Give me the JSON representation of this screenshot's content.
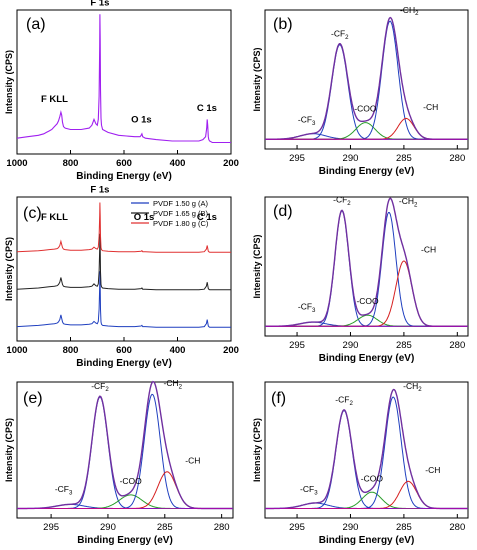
{
  "chart_data": [
    {
      "panel": "(a)",
      "type": "line",
      "xlabel": "Binding Energy (eV)",
      "ylabel": "Intensity (CPS)",
      "xlim": [
        1000,
        200
      ],
      "xticks": [
        1000,
        800,
        600,
        400,
        200
      ],
      "ylim": [
        0,
        100
      ],
      "series": [
        {
          "color": "#a020f0",
          "x": [
            1000,
            960,
            920,
            900,
            890,
            880,
            870,
            860,
            850,
            845,
            840,
            836,
            833,
            830,
            826,
            820,
            800,
            760,
            730,
            720,
            712,
            705,
            700,
            696,
            693,
            691,
            690,
            689,
            688,
            686,
            684,
            680,
            660,
            620,
            560,
            540,
            536,
            533,
            530,
            520,
            480,
            420,
            360,
            320,
            305,
            295,
            291,
            289,
            287,
            285,
            283,
            280,
            270,
            240,
            200
          ],
          "y": [
            11,
            12,
            13,
            14,
            15,
            16,
            17,
            19,
            21,
            23,
            26,
            29,
            27,
            22,
            19,
            18,
            17,
            17,
            18,
            20,
            24,
            21,
            20,
            24,
            40,
            75,
            97,
            80,
            45,
            25,
            20,
            17,
            15,
            13,
            12,
            12,
            13,
            14,
            12,
            11,
            10,
            9,
            9,
            9,
            10,
            12,
            18,
            24,
            20,
            12,
            10,
            9,
            8,
            8,
            8
          ]
        }
      ],
      "annotations": [
        "F KLL",
        "F 1s",
        "O 1s",
        "C 1s"
      ]
    },
    {
      "panel": "(b)",
      "type": "line",
      "xlabel": "Binding Energy (eV)",
      "ylabel": "Intensity (CPS)",
      "xlim": [
        298,
        279
      ],
      "xticks": [
        295,
        290,
        285,
        280
      ],
      "ylim": [
        0,
        100
      ],
      "baseline": 7,
      "peaks": [
        {
          "label": "-CF3",
          "center": 293.5,
          "height": 4,
          "width": 1.2,
          "color": "#1f3fbf"
        },
        {
          "label": "-CF2",
          "center": 291.0,
          "height": 68,
          "width": 0.75,
          "color": "#1f3fbf"
        },
        {
          "label": "-COO",
          "center": 288.6,
          "height": 12,
          "width": 0.9,
          "color": "#2a9d2a"
        },
        {
          "label": "-CH2",
          "center": 286.3,
          "height": 85,
          "width": 0.75,
          "color": "#1f3fbf"
        },
        {
          "label": "-CH",
          "center": 284.8,
          "height": 15,
          "width": 0.75,
          "color": "#d62020"
        }
      ]
    },
    {
      "panel": "(c)",
      "type": "line",
      "xlabel": "Binding Energy (eV)",
      "ylabel": "Intensity (CPS)",
      "xlim": [
        1000,
        200
      ],
      "xticks": [
        1000,
        800,
        600,
        400,
        200
      ],
      "ylim": [
        0,
        100
      ],
      "annotations": [
        "F KLL",
        "F 1s",
        "O 1s",
        "C 1s"
      ],
      "legend": [
        "PVDF 1.50 g  (A)",
        "PVDF 1.65 g  (B)",
        "PVDF 1.80 g  (C)"
      ],
      "legend_position": "top-right",
      "series": [
        {
          "name": "PVDF 1.50 g  (A)",
          "color": "#1f3fbf",
          "offset": 10,
          "scale": 0.9
        },
        {
          "name": "PVDF 1.65 g  (B)",
          "color": "#222222",
          "offset": 36,
          "scale": 0.9
        },
        {
          "name": "PVDF 1.80 g  (C)",
          "color": "#e03030",
          "offset": 62,
          "scale": 0.8
        }
      ],
      "profile": {
        "x": [
          1000,
          960,
          920,
          900,
          880,
          860,
          850,
          845,
          840,
          836,
          833,
          830,
          826,
          820,
          800,
          760,
          730,
          720,
          712,
          705,
          700,
          696,
          693,
          691,
          690,
          689,
          688,
          686,
          684,
          680,
          660,
          620,
          560,
          536,
          533,
          530,
          520,
          480,
          420,
          360,
          320,
          300,
          292,
          289,
          287,
          285,
          283,
          280,
          270,
          240,
          200
        ],
        "y": [
          0,
          1,
          2,
          3,
          4,
          5,
          6,
          8,
          12,
          20,
          14,
          8,
          5,
          4,
          3,
          3,
          4,
          5,
          9,
          6,
          5,
          9,
          30,
          70,
          95,
          70,
          30,
          8,
          4,
          2,
          1,
          0,
          0,
          1,
          2,
          0,
          0,
          -1,
          -1,
          -1,
          -1,
          0,
          5,
          12,
          7,
          1,
          0,
          -1,
          -1,
          -1,
          -1
        ]
      }
    },
    {
      "panel": "(d)",
      "type": "line",
      "xlabel": "Binding Energy (eV)",
      "ylabel": "Intensity (CPS)",
      "xlim": [
        298,
        279
      ],
      "xticks": [
        295,
        290,
        285,
        280
      ],
      "ylim": [
        0,
        100
      ],
      "baseline": 7,
      "peaks": [
        {
          "label": "-CF3",
          "center": 293.5,
          "height": 3,
          "width": 1.2,
          "color": "#1f3fbf"
        },
        {
          "label": "-CF2",
          "center": 290.8,
          "height": 83,
          "width": 0.65,
          "color": "#1f3fbf"
        },
        {
          "label": "-COO",
          "center": 288.4,
          "height": 8,
          "width": 0.9,
          "color": "#2a9d2a"
        },
        {
          "label": "-CH2",
          "center": 286.4,
          "height": 82,
          "width": 0.65,
          "color": "#1f3fbf"
        },
        {
          "label": "-CH",
          "center": 285.0,
          "height": 47,
          "width": 0.75,
          "color": "#d62020"
        }
      ]
    },
    {
      "panel": "(e)",
      "type": "line",
      "xlabel": "Binding Energy (eV)",
      "ylabel": "Intensity (CPS)",
      "xlim": [
        298,
        279
      ],
      "xticks": [
        295,
        290,
        285,
        280
      ],
      "ylim": [
        0,
        100
      ],
      "baseline": 7,
      "peaks": [
        {
          "label": "-CF3",
          "center": 293.3,
          "height": 3,
          "width": 1.2,
          "color": "#1f3fbf"
        },
        {
          "label": "-CF2",
          "center": 290.7,
          "height": 82,
          "width": 0.7,
          "color": "#1f3fbf"
        },
        {
          "label": "-COO",
          "center": 288.0,
          "height": 10,
          "width": 1.0,
          "color": "#2a9d2a"
        },
        {
          "label": "-CH2",
          "center": 286.1,
          "height": 84,
          "width": 0.7,
          "color": "#1f3fbf"
        },
        {
          "label": "-CH",
          "center": 284.8,
          "height": 27,
          "width": 0.8,
          "color": "#d62020"
        }
      ]
    },
    {
      "panel": "(f)",
      "type": "line",
      "xlabel": "Binding Energy (eV)",
      "ylabel": "Intensity (CPS)",
      "xlim": [
        298,
        279
      ],
      "xticks": [
        295,
        290,
        285,
        280
      ],
      "ylim": [
        0,
        100
      ],
      "baseline": 7,
      "peaks": [
        {
          "label": "-CF3",
          "center": 293.3,
          "height": 4,
          "width": 1.2,
          "color": "#1f3fbf"
        },
        {
          "label": "-CF2",
          "center": 290.6,
          "height": 72,
          "width": 0.75,
          "color": "#1f3fbf"
        },
        {
          "label": "-COO",
          "center": 288.0,
          "height": 12,
          "width": 0.9,
          "color": "#2a9d2a"
        },
        {
          "label": "-CH2",
          "center": 286.0,
          "height": 82,
          "width": 0.75,
          "color": "#1f3fbf"
        },
        {
          "label": "-CH",
          "center": 284.6,
          "height": 20,
          "width": 0.8,
          "color": "#d62020"
        }
      ]
    }
  ]
}
